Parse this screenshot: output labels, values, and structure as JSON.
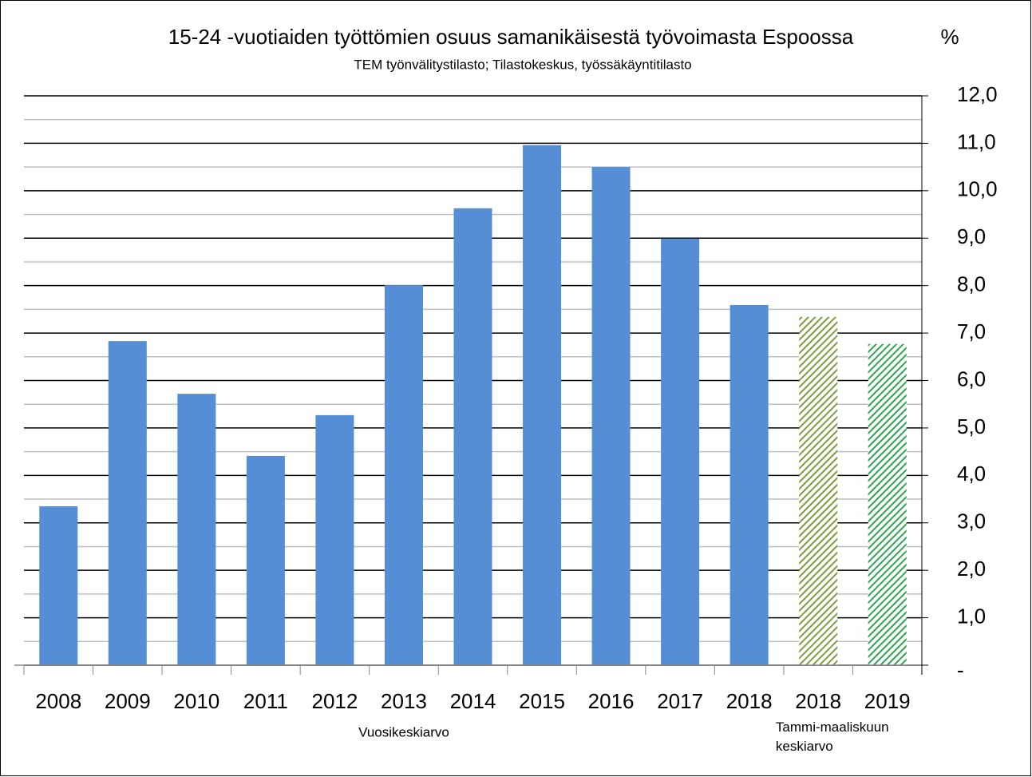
{
  "chart_data": {
    "type": "bar",
    "title": "15-24 -vuotiaiden työttömien osuus samanikäisestä työvoimasta Espoossa",
    "unit": "%",
    "subtitle": "TEM työnvälitystilasto; Tilastokeskus, työssäkäyntitilasto",
    "categories": [
      "2008",
      "2009",
      "2010",
      "2011",
      "2012",
      "2013",
      "2014",
      "2015",
      "2016",
      "2017",
      "2018",
      "2018",
      "2019"
    ],
    "values": [
      3.35,
      6.83,
      5.72,
      4.41,
      5.27,
      8.01,
      9.63,
      10.96,
      10.5,
      8.99,
      7.59,
      7.34,
      6.77
    ],
    "colors": [
      "#558ed5",
      "#558ed5",
      "#558ed5",
      "#558ed5",
      "#558ed5",
      "#558ed5",
      "#558ed5",
      "#558ed5",
      "#558ed5",
      "#558ed5",
      "#558ed5",
      "#7f9a3f",
      "#2ea352"
    ],
    "hatched": [
      false,
      false,
      false,
      false,
      false,
      false,
      false,
      false,
      false,
      false,
      false,
      true,
      true
    ],
    "annotations": [
      "Vuosikeskiarvo",
      "Tammi-maaliskuun keskiarvo"
    ],
    "ylim": [
      0,
      12
    ],
    "yticks": [
      {
        "value": 0,
        "label": "-"
      },
      {
        "value": 1,
        "label": "1,0"
      },
      {
        "value": 2,
        "label": "2,0"
      },
      {
        "value": 3,
        "label": "3,0"
      },
      {
        "value": 4,
        "label": "4,0"
      },
      {
        "value": 5,
        "label": "5,0"
      },
      {
        "value": 6,
        "label": "6,0"
      },
      {
        "value": 7,
        "label": "7,0"
      },
      {
        "value": 8,
        "label": "8,0"
      },
      {
        "value": 9,
        "label": "9,0"
      },
      {
        "value": 10,
        "label": "10,0"
      },
      {
        "value": 11,
        "label": "11,0"
      },
      {
        "value": 12,
        "label": "12,0"
      }
    ],
    "y_axis_side": "right",
    "grid": true,
    "minor_grid": true
  }
}
